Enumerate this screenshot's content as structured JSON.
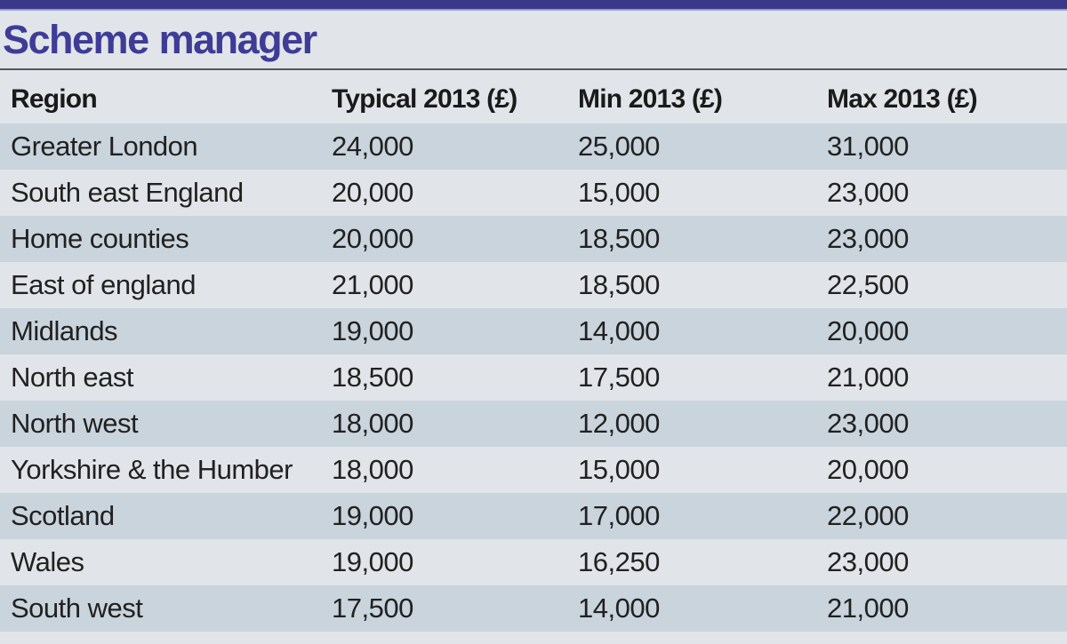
{
  "chart_data": {
    "type": "table",
    "title": "Scheme manager",
    "columns": [
      "Region",
      "Typical 2013 (£)",
      "Min 2013 (£)",
      "Max 2013 (£)"
    ],
    "rows": [
      [
        "Greater London",
        "24,000",
        "25,000",
        "31,000"
      ],
      [
        "South east England",
        "20,000",
        "15,000",
        "23,000"
      ],
      [
        "Home counties",
        "20,000",
        "18,500",
        "23,000"
      ],
      [
        "East of england",
        "21,000",
        "18,500",
        "22,500"
      ],
      [
        "Midlands",
        "19,000",
        "14,000",
        "20,000"
      ],
      [
        "North east",
        "18,500",
        "17,500",
        "21,000"
      ],
      [
        "North west",
        "18,000",
        "12,000",
        "23,000"
      ],
      [
        "Yorkshire & the Humber",
        "18,000",
        "15,000",
        "20,000"
      ],
      [
        "Scotland",
        "19,000",
        "17,000",
        "22,000"
      ],
      [
        "Wales",
        "19,000",
        "16,250",
        "23,000"
      ],
      [
        "South west",
        "17,500",
        "14,000",
        "21,000"
      ]
    ],
    "series": [
      {
        "name": "Typical 2013 (£)",
        "values": [
          24000,
          20000,
          20000,
          21000,
          19000,
          18500,
          18000,
          18000,
          19000,
          19000,
          17500
        ]
      },
      {
        "name": "Min 2013 (£)",
        "values": [
          25000,
          15000,
          18500,
          18500,
          14000,
          17500,
          12000,
          15000,
          17000,
          16250,
          14000
        ]
      },
      {
        "name": "Max 2013 (£)",
        "values": [
          31000,
          23000,
          23000,
          22500,
          20000,
          21000,
          23000,
          20000,
          22000,
          23000,
          21000
        ]
      }
    ],
    "categories": [
      "Greater London",
      "South east England",
      "Home counties",
      "East of england",
      "Midlands",
      "North east",
      "North west",
      "Yorkshire & the Humber",
      "Scotland",
      "Wales",
      "South west"
    ]
  },
  "colors": {
    "top_bar": "#39388b",
    "top_bar_accent": "#9a9dc9",
    "title_text": "#3e3c96",
    "row_shade": "#c9d4dd",
    "row_light": "#e1e5e9",
    "divider": "#55585c",
    "header_text": "#1a1a1a",
    "body_text": "#212121"
  }
}
